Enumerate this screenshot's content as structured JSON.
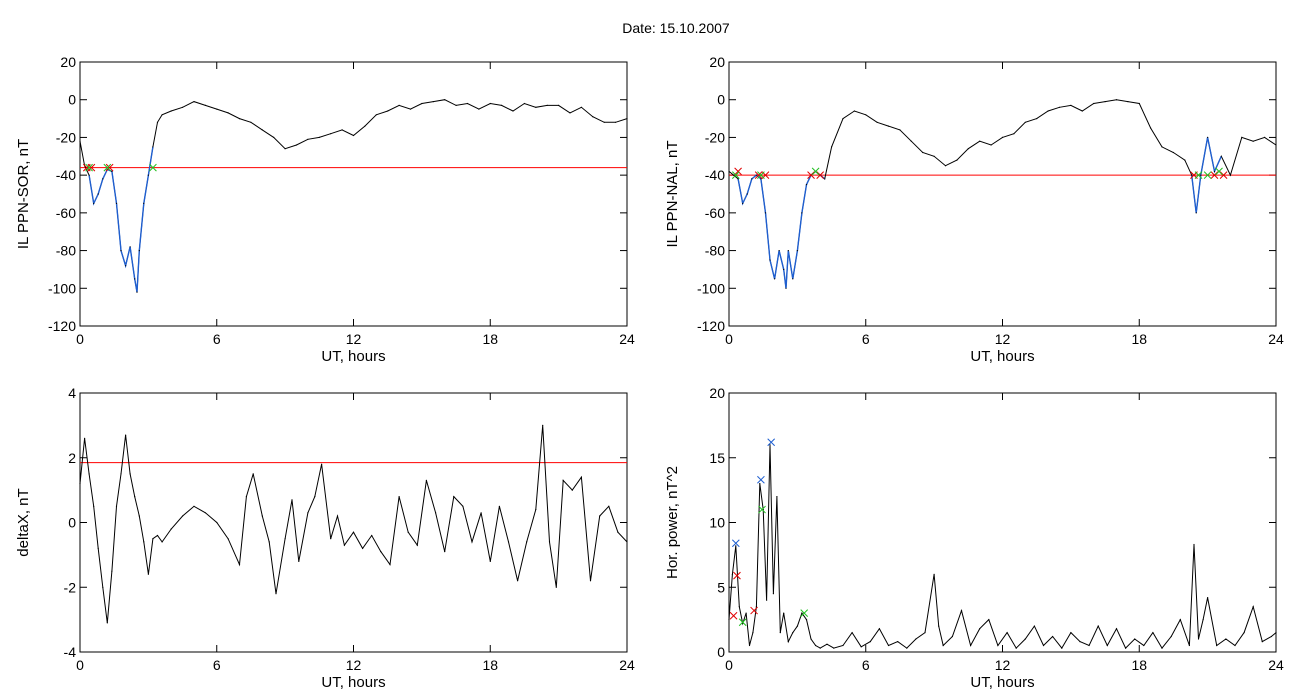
{
  "title": "Date:  15.10.2007",
  "colors": {
    "axis": "#000000",
    "data": "#000000",
    "threshold": "#ff0000",
    "blue": "#1f5fd0",
    "green": "#20c020",
    "red": "#e00000"
  },
  "chart_data": [
    {
      "type": "line",
      "xlabel": "UT, hours",
      "ylabel": "IL PPN-SOR, nT",
      "xlim": [
        0,
        24
      ],
      "ylim": [
        -120,
        20
      ],
      "xticks": [
        0,
        6,
        12,
        18,
        24
      ],
      "yticks": [
        -120,
        -100,
        -80,
        -60,
        -40,
        -20,
        0,
        20
      ],
      "threshold": -36,
      "x": [
        0,
        0.2,
        0.4,
        0.6,
        0.8,
        1.0,
        1.2,
        1.4,
        1.6,
        1.8,
        2.0,
        2.2,
        2.4,
        2.5,
        2.6,
        2.8,
        3.0,
        3.2,
        3.4,
        3.6,
        4.0,
        4.5,
        5.0,
        5.5,
        6.0,
        6.5,
        7.0,
        7.5,
        8.0,
        8.5,
        9.0,
        9.5,
        10.0,
        10.5,
        11.0,
        11.5,
        12.0,
        12.5,
        13.0,
        13.5,
        14.0,
        14.5,
        15.0,
        15.5,
        16.0,
        16.5,
        17.0,
        17.5,
        18.0,
        18.5,
        19.0,
        19.5,
        20.0,
        20.5,
        21.0,
        21.5,
        22.0,
        22.5,
        23.0,
        23.5,
        24.0
      ],
      "y": [
        -22,
        -35,
        -40,
        -55,
        -50,
        -42,
        -37,
        -38,
        -55,
        -80,
        -88,
        -78,
        -95,
        -102,
        -80,
        -55,
        -40,
        -25,
        -12,
        -8,
        -6,
        -4,
        -1,
        -3,
        -5,
        -7,
        -10,
        -12,
        -16,
        -20,
        -26,
        -24,
        -21,
        -20,
        -18,
        -16,
        -19,
        -14,
        -8,
        -6,
        -3,
        -5,
        -2,
        -1,
        0,
        -3,
        -2,
        -5,
        -2,
        -3,
        -6,
        -2,
        -4,
        -3,
        -3,
        -7,
        -4,
        -9,
        -12,
        -12,
        -10
      ],
      "blue_range": [
        0.4,
        3.2
      ],
      "markers": [
        {
          "x": 0.3,
          "y": -36,
          "color": "red"
        },
        {
          "x": 0.5,
          "y": -36,
          "color": "red"
        },
        {
          "x": 1.3,
          "y": -36,
          "color": "red"
        },
        {
          "x": 0.4,
          "y": -36,
          "color": "green"
        },
        {
          "x": 1.2,
          "y": -36,
          "color": "green"
        },
        {
          "x": 3.2,
          "y": -36,
          "color": "green"
        }
      ]
    },
    {
      "type": "line",
      "xlabel": "UT, hours",
      "ylabel": "IL PPN-NAL, nT",
      "xlim": [
        0,
        24
      ],
      "ylim": [
        -120,
        20
      ],
      "xticks": [
        0,
        6,
        12,
        18,
        24
      ],
      "yticks": [
        -120,
        -100,
        -80,
        -60,
        -40,
        -20,
        0,
        20
      ],
      "threshold": -40,
      "x": [
        0,
        0.2,
        0.4,
        0.6,
        0.8,
        1.0,
        1.2,
        1.4,
        1.6,
        1.8,
        2.0,
        2.2,
        2.4,
        2.5,
        2.6,
        2.8,
        3.0,
        3.2,
        3.4,
        3.6,
        3.8,
        4.0,
        4.2,
        4.5,
        5.0,
        5.5,
        6.0,
        6.5,
        7.0,
        7.5,
        8.0,
        8.5,
        9.0,
        9.5,
        10.0,
        10.5,
        11.0,
        11.5,
        12.0,
        12.5,
        13.0,
        13.5,
        14.0,
        14.5,
        15.0,
        15.5,
        16.0,
        16.5,
        17.0,
        17.5,
        18.0,
        18.5,
        19.0,
        19.5,
        20.0,
        20.3,
        20.5,
        20.7,
        21.0,
        21.3,
        21.6,
        22.0,
        22.5,
        23.0,
        23.5,
        24.0
      ],
      "y": [
        -38,
        -40,
        -42,
        -55,
        -50,
        -42,
        -40,
        -42,
        -60,
        -85,
        -95,
        -80,
        -90,
        -100,
        -80,
        -95,
        -80,
        -60,
        -45,
        -40,
        -38,
        -40,
        -42,
        -25,
        -10,
        -6,
        -8,
        -12,
        -14,
        -16,
        -22,
        -28,
        -30,
        -35,
        -32,
        -26,
        -22,
        -24,
        -20,
        -18,
        -12,
        -10,
        -6,
        -4,
        -3,
        -6,
        -2,
        -1,
        0,
        -1,
        -2,
        -15,
        -25,
        -28,
        -32,
        -40,
        -60,
        -40,
        -20,
        -38,
        -30,
        -40,
        -20,
        -22,
        -20,
        -24
      ],
      "blue_ranges": [
        [
          0.3,
          4.2
        ],
        [
          20.2,
          21.8
        ]
      ],
      "markers": [
        {
          "x": 0.4,
          "y": -38,
          "color": "red"
        },
        {
          "x": 1.3,
          "y": -40,
          "color": "red"
        },
        {
          "x": 1.6,
          "y": -40,
          "color": "red"
        },
        {
          "x": 3.6,
          "y": -40,
          "color": "red"
        },
        {
          "x": 4.0,
          "y": -40,
          "color": "red"
        },
        {
          "x": 20.4,
          "y": -40,
          "color": "red"
        },
        {
          "x": 21.3,
          "y": -40,
          "color": "red"
        },
        {
          "x": 21.7,
          "y": -40,
          "color": "red"
        },
        {
          "x": 0.3,
          "y": -40,
          "color": "green"
        },
        {
          "x": 1.4,
          "y": -40,
          "color": "green"
        },
        {
          "x": 3.8,
          "y": -38,
          "color": "green"
        },
        {
          "x": 20.6,
          "y": -40,
          "color": "green"
        },
        {
          "x": 21.0,
          "y": -40,
          "color": "green"
        },
        {
          "x": 21.5,
          "y": -38,
          "color": "green"
        }
      ]
    },
    {
      "type": "line",
      "xlabel": "UT, hours",
      "ylabel": "deltaX, nT",
      "xlim": [
        0,
        24
      ],
      "ylim": [
        -4,
        4
      ],
      "xticks": [
        0,
        6,
        12,
        18,
        24
      ],
      "yticks": [
        -4,
        -2,
        0,
        2,
        4
      ],
      "threshold": 1.85,
      "x": [
        0,
        0.2,
        0.4,
        0.6,
        0.8,
        1.0,
        1.2,
        1.4,
        1.6,
        1.8,
        2.0,
        2.2,
        2.4,
        2.6,
        2.8,
        3.0,
        3.2,
        3.4,
        3.6,
        4.0,
        4.5,
        5.0,
        5.5,
        6.0,
        6.5,
        7.0,
        7.3,
        7.6,
        8.0,
        8.3,
        8.6,
        9.0,
        9.3,
        9.6,
        10.0,
        10.3,
        10.6,
        11.0,
        11.3,
        11.6,
        12.0,
        12.4,
        12.8,
        13.2,
        13.6,
        14.0,
        14.4,
        14.8,
        15.2,
        15.6,
        16.0,
        16.4,
        16.8,
        17.2,
        17.6,
        18.0,
        18.4,
        18.8,
        19.2,
        19.6,
        20.0,
        20.3,
        20.6,
        20.9,
        21.2,
        21.6,
        22.0,
        22.4,
        22.8,
        23.2,
        23.6,
        24.0
      ],
      "y": [
        1.2,
        2.6,
        1.5,
        0.5,
        -0.8,
        -2.0,
        -3.1,
        -1.5,
        0.5,
        1.5,
        2.7,
        1.5,
        0.8,
        0.2,
        -0.6,
        -1.6,
        -0.5,
        -0.4,
        -0.6,
        -0.2,
        0.2,
        0.5,
        0.3,
        0.0,
        -0.5,
        -1.3,
        0.8,
        1.5,
        0.2,
        -0.6,
        -2.2,
        -0.5,
        0.7,
        -1.2,
        0.3,
        0.8,
        1.8,
        -0.5,
        0.2,
        -0.7,
        -0.3,
        -0.8,
        -0.4,
        -0.9,
        -1.3,
        0.8,
        -0.3,
        -0.7,
        1.3,
        0.3,
        -0.9,
        0.8,
        0.5,
        -0.6,
        0.3,
        -1.2,
        0.5,
        -0.6,
        -1.8,
        -0.6,
        0.4,
        3.0,
        -0.6,
        -2.0,
        1.3,
        1.0,
        1.4,
        -1.8,
        0.2,
        0.5,
        -0.3,
        -0.6
      ]
    },
    {
      "type": "line",
      "xlabel": "UT, hours",
      "ylabel": "Hor. power, nT^2",
      "xlim": [
        0,
        24
      ],
      "ylim": [
        0,
        20
      ],
      "xticks": [
        0,
        6,
        12,
        18,
        24
      ],
      "yticks": [
        0,
        5,
        10,
        15,
        20
      ],
      "x": [
        0,
        0.15,
        0.3,
        0.45,
        0.6,
        0.75,
        0.9,
        1.05,
        1.2,
        1.35,
        1.5,
        1.65,
        1.8,
        1.95,
        2.1,
        2.25,
        2.4,
        2.6,
        2.8,
        3.0,
        3.2,
        3.4,
        3.6,
        3.8,
        4.0,
        4.3,
        4.6,
        5.0,
        5.4,
        5.8,
        6.2,
        6.6,
        7.0,
        7.4,
        7.8,
        8.2,
        8.6,
        9.0,
        9.2,
        9.4,
        9.8,
        10.2,
        10.6,
        11.0,
        11.4,
        11.8,
        12.2,
        12.6,
        13.0,
        13.4,
        13.8,
        14.2,
        14.6,
        15.0,
        15.4,
        15.8,
        16.2,
        16.6,
        17.0,
        17.4,
        17.8,
        18.2,
        18.6,
        19.0,
        19.4,
        19.8,
        20.2,
        20.4,
        20.6,
        20.8,
        21.0,
        21.4,
        21.8,
        22.2,
        22.6,
        23.0,
        23.4,
        23.8,
        24.0
      ],
      "y": [
        2.5,
        6.0,
        8.2,
        3.5,
        2.2,
        3.0,
        0.5,
        1.5,
        3.5,
        13.0,
        11.0,
        4.0,
        16.0,
        4.5,
        12.0,
        1.5,
        3.0,
        0.8,
        1.5,
        2.0,
        3.0,
        2.5,
        1.0,
        0.5,
        0.3,
        0.6,
        0.3,
        0.5,
        1.5,
        0.4,
        0.8,
        1.8,
        0.5,
        0.8,
        0.3,
        1.0,
        1.5,
        6.0,
        2.0,
        0.5,
        1.2,
        3.2,
        0.5,
        1.8,
        2.5,
        0.5,
        1.5,
        0.3,
        1.0,
        2.0,
        0.5,
        1.2,
        0.3,
        1.5,
        0.8,
        0.5,
        2.0,
        0.5,
        1.8,
        0.3,
        1.0,
        0.5,
        1.5,
        0.3,
        1.2,
        2.5,
        0.5,
        8.3,
        1.0,
        2.5,
        4.2,
        0.5,
        1.0,
        0.5,
        1.5,
        3.5,
        0.8,
        1.2,
        1.5
      ],
      "markers": [
        {
          "x": 0.2,
          "y": 2.8,
          "color": "red"
        },
        {
          "x": 0.35,
          "y": 5.9,
          "color": "red"
        },
        {
          "x": 1.1,
          "y": 3.2,
          "color": "red"
        },
        {
          "x": 0.3,
          "y": 8.4,
          "color": "blue"
        },
        {
          "x": 1.4,
          "y": 13.3,
          "color": "blue"
        },
        {
          "x": 1.85,
          "y": 16.2,
          "color": "blue"
        },
        {
          "x": 0.6,
          "y": 2.3,
          "color": "green"
        },
        {
          "x": 1.45,
          "y": 11.0,
          "color": "green"
        },
        {
          "x": 3.3,
          "y": 3.0,
          "color": "green"
        }
      ]
    }
  ]
}
